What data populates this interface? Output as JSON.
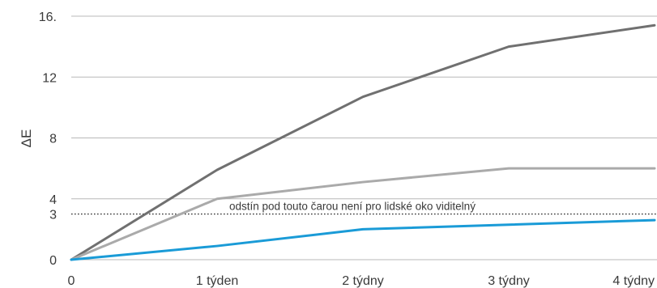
{
  "chart_data": {
    "type": "line",
    "x": [
      "0",
      "1 týden",
      "2 týdny",
      "3 týdny",
      "4 týdny"
    ],
    "y_ticks": [
      0,
      3,
      4,
      8,
      12,
      16
    ],
    "y_tick_labels": [
      "0",
      "3",
      "4",
      "8",
      "12",
      "16."
    ],
    "ylabel": "ΔE",
    "xlabel": "",
    "ylim": [
      0,
      16
    ],
    "grid": true,
    "series": [
      {
        "values": [
          0,
          5.9,
          10.7,
          14.0,
          15.4
        ],
        "color": "#707070"
      },
      {
        "values": [
          0,
          4.0,
          5.1,
          6.0,
          6.0
        ],
        "color": "#aaaaaa"
      },
      {
        "values": [
          0,
          0.9,
          2.0,
          2.3,
          2.6
        ],
        "color": "#1a9bd7"
      }
    ],
    "threshold": {
      "value": 3,
      "label": "odstín pod touto čarou není pro lidské oko viditelný"
    }
  }
}
